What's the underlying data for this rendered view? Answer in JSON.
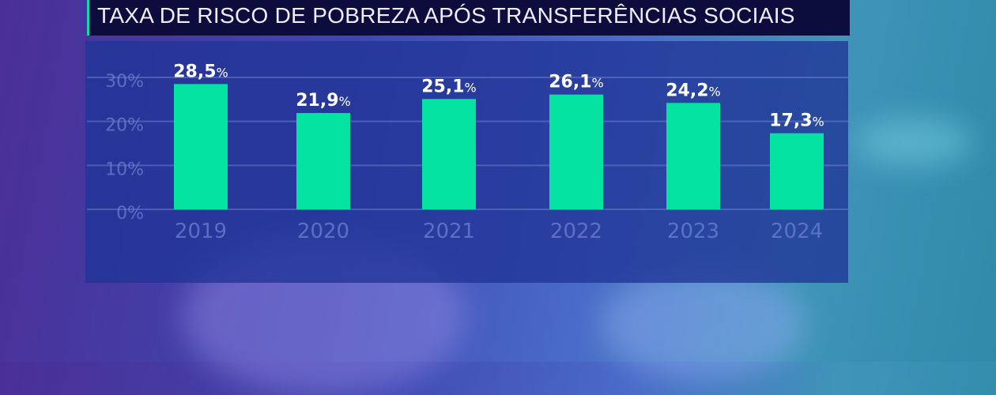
{
  "title": "TAXA DE RISCO DE POBREZA APÓS TRANSFERÊNCIAS SOCIAIS",
  "colors": {
    "bar": "#05e3a2",
    "title_bg": "#0c0d3c",
    "accent": "#14d8b0",
    "panel": "#20349a"
  },
  "chart_data": {
    "type": "bar",
    "title": "TAXA DE RISCO DE POBREZA APÓS TRANSFERÊNCIAS SOCIAIS",
    "categories": [
      "2019",
      "2020",
      "2021",
      "2022",
      "2023",
      "2024"
    ],
    "values": [
      28.5,
      21.9,
      25.1,
      26.1,
      24.2,
      17.3
    ],
    "data_labels": [
      "28,5",
      "21,9",
      "25,1",
      "26,1",
      "24,2",
      "17,3"
    ],
    "label_suffix": "%",
    "yticks": [
      "0%",
      "10%",
      "20%",
      "30%"
    ],
    "ytick_values": [
      0,
      10,
      20,
      30
    ],
    "ylim": [
      0,
      30
    ],
    "grid": true,
    "xlabel": "",
    "ylabel": ""
  }
}
